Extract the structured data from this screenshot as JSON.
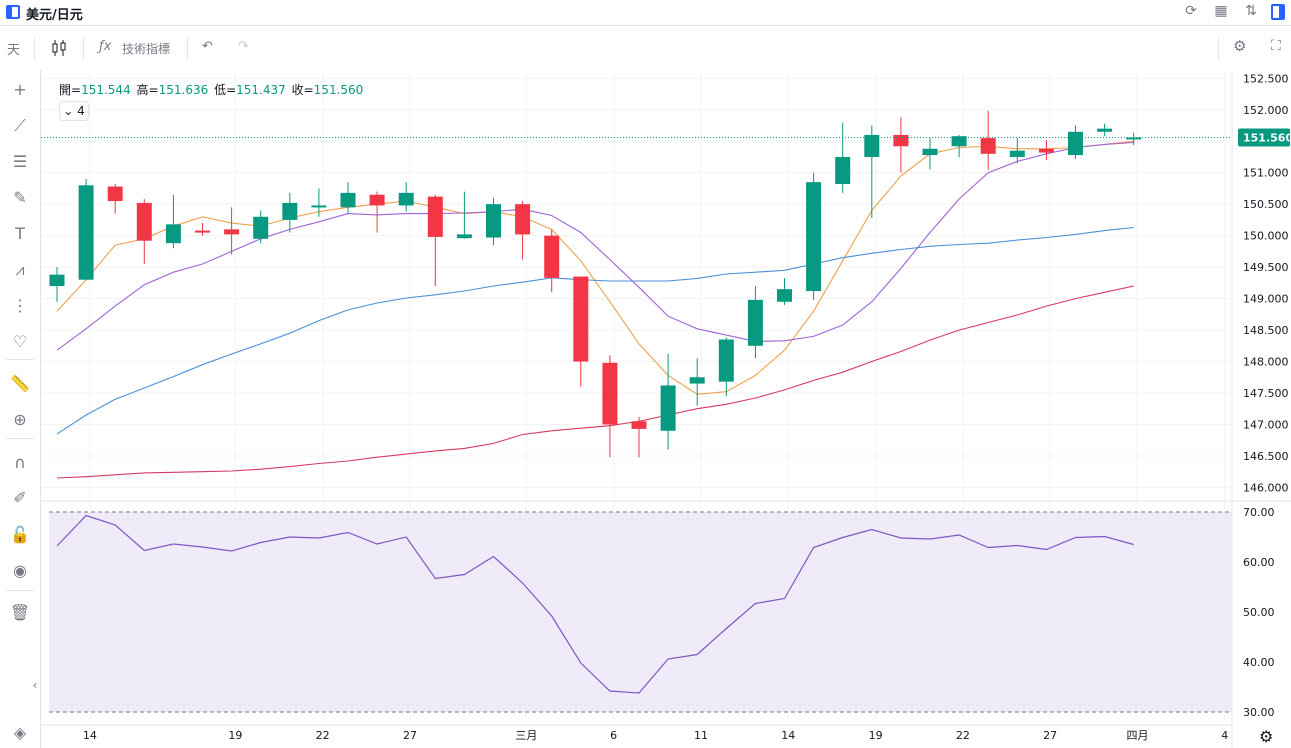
{
  "title": "美元/日元",
  "toolbar": {
    "timeframe": "天",
    "indicators_label": "技術指標"
  },
  "ohlc": {
    "open_label": "開",
    "open": "151.544",
    "high_label": "高",
    "high": "151.636",
    "low_label": "低",
    "low": "151.437",
    "close_label": "收",
    "close": "151.560"
  },
  "indicator_count": "4",
  "colors": {
    "up": "#089981",
    "down": "#f23645",
    "ma_fast": "#f0a04b",
    "ma_mid": "#a064d8",
    "ma_slow": "#4a90d9",
    "ma_long": "#d63a5e",
    "rsi": "#7e57c2",
    "rsi_band": "#efebf8",
    "last_price": "#089981"
  },
  "chart_data": [
    {
      "type": "candlestick",
      "x_labels": [
        "14",
        "19",
        "22",
        "27",
        "三月",
        "6",
        "11",
        "14",
        "19",
        "22",
        "27",
        "四月",
        "4"
      ],
      "ylim": [
        145.8,
        152.6
      ],
      "y_ticks": [
        "152.500",
        "152.000",
        "151.500",
        "151.000",
        "150.500",
        "150.000",
        "149.500",
        "149.000",
        "148.500",
        "148.000",
        "147.500",
        "147.000",
        "146.500",
        "146.000"
      ],
      "last_price": "151.560",
      "candles": [
        {
          "o": 149.2,
          "h": 149.5,
          "l": 148.95,
          "c": 149.38
        },
        {
          "o": 149.3,
          "h": 150.9,
          "l": 149.3,
          "c": 150.8
        },
        {
          "o": 150.78,
          "h": 150.82,
          "l": 150.35,
          "c": 150.55
        },
        {
          "o": 150.52,
          "h": 150.58,
          "l": 149.55,
          "c": 149.92
        },
        {
          "o": 149.88,
          "h": 150.65,
          "l": 149.8,
          "c": 150.18
        },
        {
          "o": 150.08,
          "h": 150.2,
          "l": 150.0,
          "c": 150.05
        },
        {
          "o": 150.1,
          "h": 150.45,
          "l": 149.7,
          "c": 150.02
        },
        {
          "o": 149.95,
          "h": 150.4,
          "l": 149.88,
          "c": 150.3
        },
        {
          "o": 150.25,
          "h": 150.68,
          "l": 150.05,
          "c": 150.52
        },
        {
          "o": 150.45,
          "h": 150.75,
          "l": 150.3,
          "c": 150.48
        },
        {
          "o": 150.45,
          "h": 150.85,
          "l": 150.35,
          "c": 150.68
        },
        {
          "o": 150.65,
          "h": 150.7,
          "l": 150.05,
          "c": 150.48
        },
        {
          "o": 150.48,
          "h": 150.85,
          "l": 150.38,
          "c": 150.68
        },
        {
          "o": 150.62,
          "h": 150.65,
          "l": 149.2,
          "c": 149.98
        },
        {
          "o": 149.96,
          "h": 150.7,
          "l": 149.95,
          "c": 150.02
        },
        {
          "o": 149.97,
          "h": 150.6,
          "l": 149.85,
          "c": 150.5
        },
        {
          "o": 150.5,
          "h": 150.55,
          "l": 149.62,
          "c": 150.02
        },
        {
          "o": 150.0,
          "h": 150.1,
          "l": 149.1,
          "c": 149.33
        },
        {
          "o": 149.35,
          "h": 149.35,
          "l": 147.6,
          "c": 148.0
        },
        {
          "o": 147.98,
          "h": 148.1,
          "l": 146.48,
          "c": 147.0
        },
        {
          "o": 147.05,
          "h": 147.12,
          "l": 146.48,
          "c": 146.93
        },
        {
          "o": 146.9,
          "h": 148.12,
          "l": 146.6,
          "c": 147.62
        },
        {
          "o": 147.65,
          "h": 148.05,
          "l": 147.3,
          "c": 147.75
        },
        {
          "o": 147.68,
          "h": 148.38,
          "l": 147.45,
          "c": 148.35
        },
        {
          "o": 148.25,
          "h": 149.2,
          "l": 148.05,
          "c": 148.98
        },
        {
          "o": 148.95,
          "h": 149.33,
          "l": 148.9,
          "c": 149.15
        },
        {
          "o": 149.12,
          "h": 151.0,
          "l": 148.98,
          "c": 150.85
        },
        {
          "o": 150.82,
          "h": 151.8,
          "l": 150.68,
          "c": 151.25
        },
        {
          "o": 151.25,
          "h": 151.75,
          "l": 150.28,
          "c": 151.6
        },
        {
          "o": 151.6,
          "h": 151.88,
          "l": 151.0,
          "c": 151.42
        },
        {
          "o": 151.28,
          "h": 151.55,
          "l": 151.05,
          "c": 151.38
        },
        {
          "o": 151.42,
          "h": 151.6,
          "l": 151.25,
          "c": 151.58
        },
        {
          "o": 151.55,
          "h": 151.98,
          "l": 151.05,
          "c": 151.3
        },
        {
          "o": 151.25,
          "h": 151.55,
          "l": 151.15,
          "c": 151.35
        },
        {
          "o": 151.38,
          "h": 151.52,
          "l": 151.2,
          "c": 151.32
        },
        {
          "o": 151.28,
          "h": 151.75,
          "l": 151.22,
          "c": 151.65
        },
        {
          "o": 151.65,
          "h": 151.78,
          "l": 151.58,
          "c": 151.7
        },
        {
          "o": 151.544,
          "h": 151.636,
          "l": 151.437,
          "c": 151.56
        }
      ],
      "series": [
        {
          "key": "ma_fast",
          "values": [
            148.8,
            149.3,
            149.85,
            149.95,
            150.15,
            150.3,
            150.2,
            150.15,
            150.28,
            150.38,
            150.45,
            150.5,
            150.55,
            150.45,
            150.35,
            150.38,
            150.3,
            150.1,
            149.6,
            148.95,
            148.28,
            147.78,
            147.48,
            147.52,
            147.78,
            148.18,
            148.8,
            149.6,
            150.4,
            150.95,
            151.3,
            151.4,
            151.42,
            151.38,
            151.38,
            151.4,
            151.45,
            151.5
          ]
        },
        {
          "key": "ma_mid",
          "values": [
            148.18,
            148.52,
            148.88,
            149.22,
            149.42,
            149.55,
            149.75,
            149.95,
            150.1,
            150.22,
            150.35,
            150.33,
            150.35,
            150.35,
            150.36,
            150.38,
            150.42,
            150.32,
            150.05,
            149.62,
            149.18,
            148.72,
            148.52,
            148.42,
            148.32,
            148.33,
            148.4,
            148.58,
            148.95,
            149.48,
            150.05,
            150.58,
            151.0,
            151.18,
            151.3,
            151.4,
            151.45,
            151.48
          ]
        },
        {
          "key": "ma_slow",
          "values": [
            146.85,
            147.15,
            147.4,
            147.58,
            147.76,
            147.95,
            148.12,
            148.28,
            148.45,
            148.65,
            148.82,
            148.93,
            149.01,
            149.06,
            149.12,
            149.2,
            149.26,
            149.33,
            149.3,
            149.28,
            149.28,
            149.28,
            149.32,
            149.39,
            149.42,
            149.45,
            149.55,
            149.65,
            149.72,
            149.78,
            149.83,
            149.86,
            149.88,
            149.93,
            149.97,
            150.02,
            150.08,
            150.13
          ]
        },
        {
          "key": "ma_long",
          "values": [
            146.15,
            146.17,
            146.2,
            146.23,
            146.24,
            146.25,
            146.26,
            146.29,
            146.33,
            146.38,
            146.42,
            146.48,
            146.53,
            146.58,
            146.62,
            146.7,
            146.84,
            146.9,
            146.94,
            146.98,
            147.05,
            147.15,
            147.25,
            147.32,
            147.42,
            147.55,
            147.7,
            147.83,
            148.0,
            148.16,
            148.34,
            148.5,
            148.62,
            148.74,
            148.88,
            149.0,
            149.1,
            149.2
          ]
        }
      ]
    },
    {
      "type": "line",
      "ylim": [
        28,
        72
      ],
      "y_ticks": [
        "70.00",
        "60.00",
        "50.00",
        "40.00",
        "30.00"
      ],
      "band": [
        30,
        70
      ],
      "values": [
        63.2,
        69.3,
        67.4,
        62.3,
        63.6,
        63.0,
        62.2,
        63.9,
        65.0,
        64.8,
        65.9,
        63.6,
        65.0,
        56.7,
        57.5,
        61.1,
        55.8,
        49.2,
        39.8,
        34.2,
        33.8,
        40.6,
        41.5,
        46.7,
        51.7,
        52.7,
        62.9,
        64.9,
        66.5,
        64.8,
        64.6,
        65.4,
        62.9,
        63.3,
        62.5,
        64.9,
        65.1,
        63.5
      ]
    }
  ]
}
